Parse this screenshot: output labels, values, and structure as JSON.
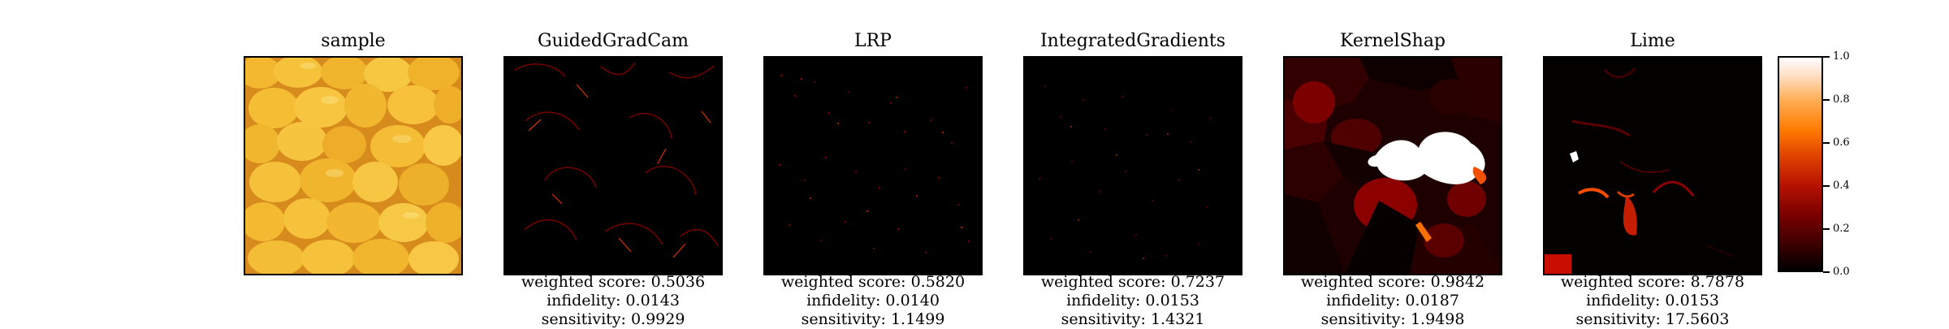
{
  "panels": [
    {
      "title": "sample",
      "metrics": []
    },
    {
      "title": "GuidedGradCam",
      "metrics": [
        "weighted score: 0.5036",
        "infidelity: 0.0143",
        "sensitivity: 0.9929"
      ]
    },
    {
      "title": "LRP",
      "metrics": [
        "weighted score: 0.5820",
        "infidelity: 0.0140",
        "sensitivity: 1.1499"
      ]
    },
    {
      "title": "IntegratedGradients",
      "metrics": [
        "weighted score: 0.7237",
        "infidelity: 0.0153",
        "sensitivity: 1.4321"
      ]
    },
    {
      "title": "KernelShap",
      "metrics": [
        "weighted score: 0.9842",
        "infidelity: 0.0187",
        "sensitivity: 1.9498"
      ]
    },
    {
      "title": "Lime",
      "metrics": [
        "weighted score: 8.7878",
        "infidelity: 0.0153",
        "sensitivity: 17.5603"
      ]
    }
  ],
  "colorbar": {
    "ticks": [
      "0.0",
      "0.2",
      "0.4",
      "0.6",
      "0.8",
      "1.0"
    ],
    "gradient_colors": [
      "#000000",
      "#7a0000",
      "#e04300",
      "#ff7a00",
      "#ffe0c8",
      "#ffffff"
    ]
  },
  "colors": {
    "lemon_light": "#f8c53d",
    "lemon_dark": "#d98b17",
    "heat_low": "#3b0000",
    "heat_mid": "#b71200",
    "heat_high": "#ffffff"
  }
}
